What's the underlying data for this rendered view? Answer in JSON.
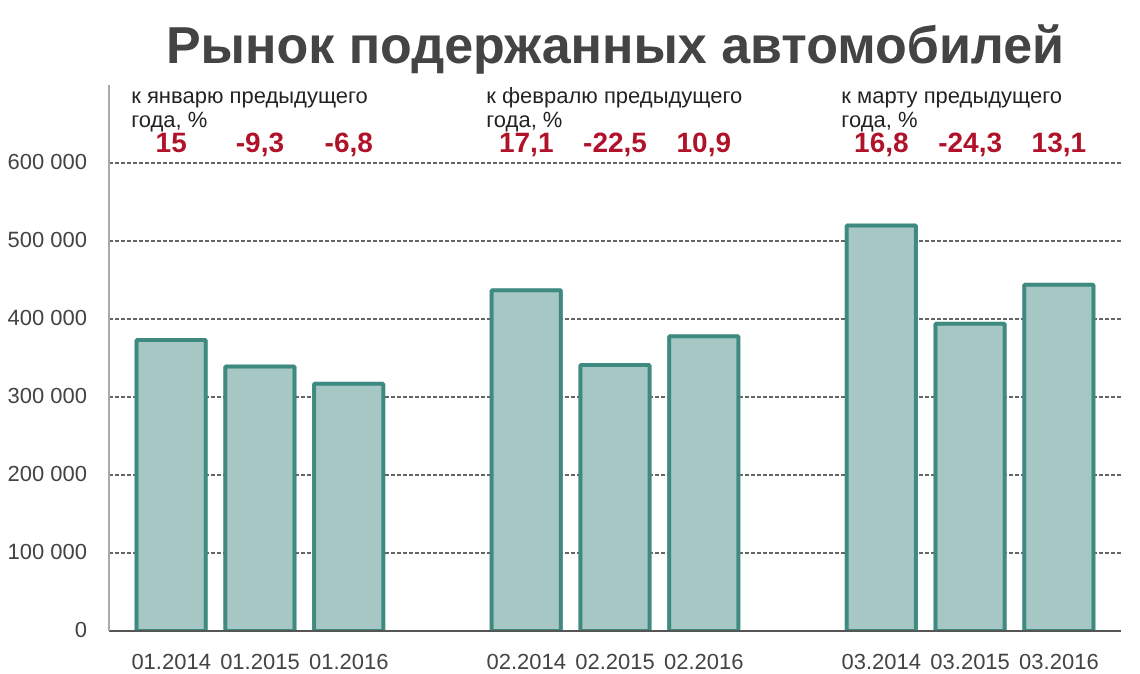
{
  "chart_data": {
    "type": "bar",
    "title": "Рынок подержанных автомобилей",
    "categories": [
      "01.2014",
      "01.2015",
      "01.2016",
      null,
      "02.2014",
      "02.2015",
      "02.2016",
      null,
      "03.2014",
      "03.2015",
      "03.2016"
    ],
    "values": [
      373000,
      339000,
      317000,
      null,
      437000,
      341000,
      378000,
      null,
      520000,
      394000,
      444000
    ],
    "color": "#a6c7c4",
    "ylim": [
      0,
      700000
    ],
    "yticks": [
      0,
      100000,
      200000,
      300000,
      400000,
      500000,
      600000
    ],
    "grid": "y",
    "annotations": [
      "к январю предыдущего года, %",
      "15",
      "-9,3",
      "-6,8",
      "к февралю предыдущего года, %",
      "17,1",
      "-22,5",
      "10,9",
      "к марту предыдущего года, %",
      "16,8",
      "-24,3",
      "13,1"
    ]
  }
}
